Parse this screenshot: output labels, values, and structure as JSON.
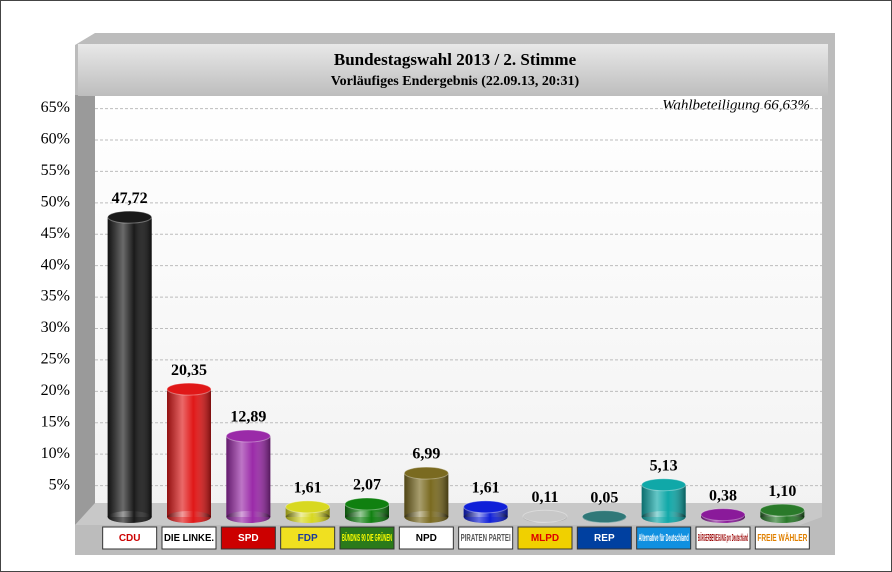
{
  "chart_data": {
    "type": "bar",
    "title": "Bundestagswahl 2013 / 2. Stimme",
    "subtitle": "Vorläufiges Endergebnis (22.09.13, 20:31)",
    "annotation": "Wahlbeteiligung 66,63%",
    "categories": [
      "CDU",
      "DIE LINKE.",
      "SPD",
      "FDP",
      "BÜNDNIS 90 DIE GRÜNEN",
      "NPD",
      "PIRATEN PARTEI",
      "MLPD",
      "REP",
      "Alternative für Deutschland",
      "BÜRGERBEWEGUNG pro Deutschland",
      "FREIE WÄHLER"
    ],
    "values": [
      47.72,
      20.35,
      12.89,
      1.61,
      2.07,
      6.99,
      1.61,
      0.11,
      0.05,
      5.13,
      0.38,
      1.1
    ],
    "value_labels": [
      "47,72",
      "20,35",
      "12,89",
      "1,61",
      "2,07",
      "6,99",
      "1,61",
      "0,11",
      "0,05",
      "5,13",
      "0,38",
      "1,10"
    ],
    "colors": [
      "#1a1a1a",
      "#e01818",
      "#9a2aa8",
      "#d8d820",
      "#108010",
      "#7a6a20",
      "#1020d8",
      "#c8c8c8",
      "#307878",
      "#10a8a8",
      "#8a1a9a",
      "#2a7a2a"
    ],
    "ylim": [
      0,
      67
    ],
    "yticks": [
      {
        "value": 5,
        "label": "5%"
      },
      {
        "value": 10,
        "label": "10%"
      },
      {
        "value": 15,
        "label": "15%"
      },
      {
        "value": 20,
        "label": "20%"
      },
      {
        "value": 25,
        "label": "25%"
      },
      {
        "value": 30,
        "label": "30%"
      },
      {
        "value": 35,
        "label": "35%"
      },
      {
        "value": 40,
        "label": "40%"
      },
      {
        "value": 45,
        "label": "45%"
      },
      {
        "value": 50,
        "label": "50%"
      },
      {
        "value": 55,
        "label": "55%"
      },
      {
        "value": 60,
        "label": "60%"
      },
      {
        "value": 65,
        "label": "65%"
      }
    ],
    "grid": true
  }
}
